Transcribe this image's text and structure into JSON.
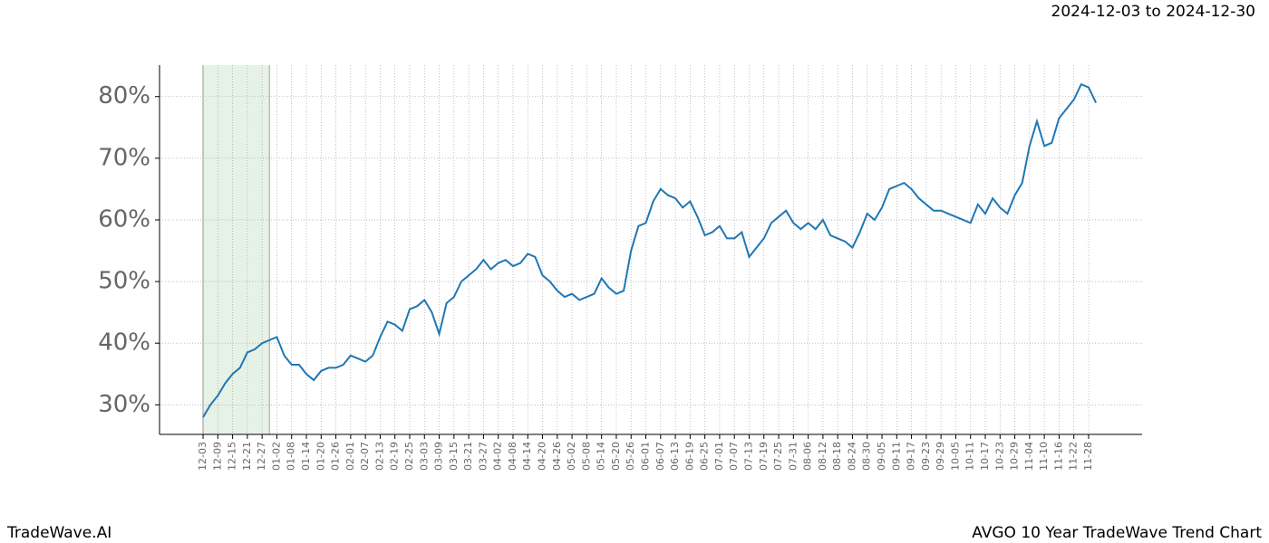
{
  "chart_data": {
    "type": "line",
    "title": "2024-12-03 to 2024-12-30",
    "footer_left": "TradeWave.AI",
    "footer_right": "AVGO 10 Year TradeWave Trend Chart",
    "grid": true,
    "highlight": [
      0,
      18
    ],
    "highlight_color": "#e6f2e6",
    "xlim": [
      -11.8,
      254.5
    ],
    "ylim": [
      25.2,
      85.1
    ],
    "yticks": [
      {
        "value": 30,
        "label": "30%"
      },
      {
        "value": 40,
        "label": "40%"
      },
      {
        "value": 50,
        "label": "50%"
      },
      {
        "value": 60,
        "label": "60%"
      },
      {
        "value": 70,
        "label": "70%"
      },
      {
        "value": 80,
        "label": "80%"
      }
    ],
    "xticks": [
      {
        "value": 0,
        "label": "12-03"
      },
      {
        "value": 4,
        "label": "12-09"
      },
      {
        "value": 8,
        "label": "12-15"
      },
      {
        "value": 12,
        "label": "12-21"
      },
      {
        "value": 16,
        "label": "12-27"
      },
      {
        "value": 20,
        "label": "01-02"
      },
      {
        "value": 24,
        "label": "01-08"
      },
      {
        "value": 28,
        "label": "01-14"
      },
      {
        "value": 32,
        "label": "01-20"
      },
      {
        "value": 36,
        "label": "01-26"
      },
      {
        "value": 40,
        "label": "02-01"
      },
      {
        "value": 44,
        "label": "02-07"
      },
      {
        "value": 48,
        "label": "02-13"
      },
      {
        "value": 52,
        "label": "02-19"
      },
      {
        "value": 56,
        "label": "02-25"
      },
      {
        "value": 60,
        "label": "03-03"
      },
      {
        "value": 64,
        "label": "03-09"
      },
      {
        "value": 68,
        "label": "03-15"
      },
      {
        "value": 72,
        "label": "03-21"
      },
      {
        "value": 76,
        "label": "03-27"
      },
      {
        "value": 80,
        "label": "04-02"
      },
      {
        "value": 84,
        "label": "04-08"
      },
      {
        "value": 88,
        "label": "04-14"
      },
      {
        "value": 92,
        "label": "04-20"
      },
      {
        "value": 96,
        "label": "04-26"
      },
      {
        "value": 100,
        "label": "05-02"
      },
      {
        "value": 104,
        "label": "05-08"
      },
      {
        "value": 108,
        "label": "05-14"
      },
      {
        "value": 112,
        "label": "05-20"
      },
      {
        "value": 116,
        "label": "05-26"
      },
      {
        "value": 120,
        "label": "06-01"
      },
      {
        "value": 124,
        "label": "06-07"
      },
      {
        "value": 128,
        "label": "06-13"
      },
      {
        "value": 132,
        "label": "06-19"
      },
      {
        "value": 136,
        "label": "06-25"
      },
      {
        "value": 140,
        "label": "07-01"
      },
      {
        "value": 144,
        "label": "07-07"
      },
      {
        "value": 148,
        "label": "07-13"
      },
      {
        "value": 152,
        "label": "07-19"
      },
      {
        "value": 156,
        "label": "07-25"
      },
      {
        "value": 160,
        "label": "07-31"
      },
      {
        "value": 164,
        "label": "08-06"
      },
      {
        "value": 168,
        "label": "08-12"
      },
      {
        "value": 172,
        "label": "08-18"
      },
      {
        "value": 176,
        "label": "08-24"
      },
      {
        "value": 180,
        "label": "08-30"
      },
      {
        "value": 184,
        "label": "09-05"
      },
      {
        "value": 188,
        "label": "09-11"
      },
      {
        "value": 192,
        "label": "09-17"
      },
      {
        "value": 196,
        "label": "09-23"
      },
      {
        "value": 200,
        "label": "09-29"
      },
      {
        "value": 204,
        "label": "10-05"
      },
      {
        "value": 208,
        "label": "10-11"
      },
      {
        "value": 212,
        "label": "10-17"
      },
      {
        "value": 216,
        "label": "10-23"
      },
      {
        "value": 220,
        "label": "10-29"
      },
      {
        "value": 224,
        "label": "11-04"
      },
      {
        "value": 228,
        "label": "11-10"
      },
      {
        "value": 232,
        "label": "11-16"
      },
      {
        "value": 236,
        "label": "11-22"
      },
      {
        "value": 240,
        "label": "11-28"
      }
    ],
    "x": [
      0,
      2,
      4,
      6,
      8,
      10,
      12,
      14,
      16,
      18,
      20,
      22,
      24,
      26,
      28,
      30,
      32,
      34,
      36,
      38,
      40,
      42,
      44,
      46,
      48,
      50,
      52,
      54,
      56,
      58,
      60,
      62,
      64,
      66,
      68,
      70,
      72,
      74,
      76,
      78,
      80,
      82,
      84,
      86,
      88,
      90,
      92,
      94,
      96,
      98,
      100,
      102,
      104,
      106,
      108,
      110,
      112,
      114,
      116,
      118,
      120,
      122,
      124,
      126,
      128,
      130,
      132,
      134,
      136,
      138,
      140,
      142,
      144,
      146,
      148,
      150,
      152,
      154,
      156,
      158,
      160,
      162,
      164,
      166,
      168,
      170,
      172,
      174,
      176,
      178,
      180,
      182,
      184,
      186,
      188,
      190,
      192,
      194,
      196,
      198,
      200,
      202,
      204,
      206,
      208,
      210,
      212,
      214,
      216,
      218,
      220,
      222,
      224,
      226,
      228,
      230,
      232,
      234,
      236,
      238,
      240,
      242
    ],
    "series": [
      {
        "color": "#1f77b4",
        "values": [
          28,
          30,
          31.5,
          33.5,
          35,
          36,
          38.5,
          39,
          40,
          40.5,
          41,
          38,
          36.5,
          36.5,
          35,
          34,
          35.5,
          36,
          36,
          36.5,
          38,
          37.5,
          37,
          38,
          41,
          43.5,
          43,
          42,
          45.5,
          46,
          47,
          45,
          41.5,
          46.5,
          47.5,
          50,
          51,
          52,
          53.5,
          52,
          53,
          53.5,
          52.5,
          53,
          54.5,
          54,
          51,
          50,
          48.5,
          47.5,
          48,
          47,
          47.5,
          48,
          50.5,
          49,
          48,
          48.5,
          55,
          59,
          59.5,
          63,
          65,
          64,
          63.5,
          62,
          63,
          60.5,
          57.5,
          58,
          59,
          57,
          57,
          58,
          54,
          55.5,
          57,
          59.5,
          60.5,
          61.5,
          59.5,
          58.5,
          59.5,
          58.5,
          60,
          57.5,
          57,
          56.5,
          55.5,
          58,
          61,
          60,
          62,
          65,
          65.5,
          66,
          65,
          63.5,
          62.5,
          61.5,
          61.5,
          61,
          60.5,
          60,
          59.5,
          62.5,
          61,
          63.5,
          62,
          61,
          64,
          66,
          72,
          76,
          72,
          72.5,
          76.5,
          78,
          79.5,
          82,
          81.5,
          79
        ]
      }
    ]
  }
}
